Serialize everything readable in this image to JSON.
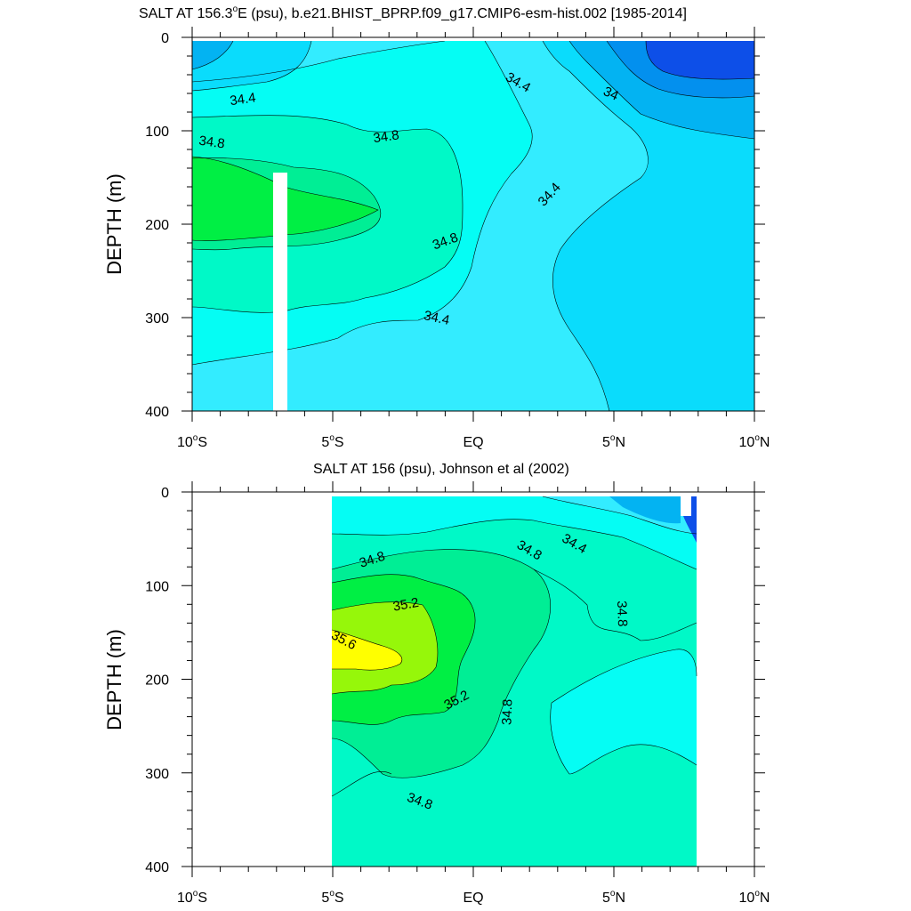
{
  "chart_data": [
    {
      "type": "heatmap",
      "title_main": "SALT AT 156.3",
      "title_deg": "o",
      "title_rest": "E (psu), b.e21.BHIST_BPRP.f09_g17.CMIP6-esm-hist.002 [1985-2014]",
      "ylabel": "DEPTH (m)",
      "xlim": [
        -10,
        10
      ],
      "ylim": [
        0,
        400
      ],
      "y_reversed": true,
      "y_ticks": [
        {
          "v": 0,
          "label": "0"
        },
        {
          "v": 100,
          "label": "100"
        },
        {
          "v": 200,
          "label": "200"
        },
        {
          "v": 300,
          "label": "300"
        },
        {
          "v": 400,
          "label": "400"
        }
      ],
      "x_ticks": [
        {
          "v": -10,
          "num": "10",
          "deg": "o",
          "hemi": "S"
        },
        {
          "v": -5,
          "num": "5",
          "deg": "o",
          "hemi": "S"
        },
        {
          "v": 0,
          "num": "",
          "deg": "",
          "hemi": "EQ"
        },
        {
          "v": 5,
          "num": "5",
          "deg": "o",
          "hemi": "N"
        },
        {
          "v": 10,
          "num": "10",
          "deg": "o",
          "hemi": "N"
        }
      ],
      "contour_labels": [
        {
          "text": "34.4",
          "lat": -8.2,
          "depth": 66,
          "angle": -8
        },
        {
          "text": "34.8",
          "lat": -9.3,
          "depth": 112,
          "angle": 8
        },
        {
          "text": "34.8",
          "lat": -3.1,
          "depth": 106,
          "angle": -8
        },
        {
          "text": "34.8",
          "lat": -1.0,
          "depth": 218,
          "angle": -20
        },
        {
          "text": "34.4",
          "lat": -1.3,
          "depth": 300,
          "angle": 12
        },
        {
          "text": "34.4",
          "lat": 1.6,
          "depth": 48,
          "angle": 30
        },
        {
          "text": "34",
          "lat": 4.9,
          "depth": 60,
          "angle": 25
        },
        {
          "text": "34.4",
          "lat": 2.7,
          "depth": 168,
          "angle": -48
        }
      ]
    },
    {
      "type": "heatmap",
      "title": "SALT AT 156 (psu), Johnson et al (2002)",
      "ylabel": "DEPTH (m)",
      "xlim": [
        -10,
        10
      ],
      "ylim": [
        0,
        400
      ],
      "y_reversed": true,
      "y_ticks": [
        {
          "v": 0,
          "label": "0"
        },
        {
          "v": 100,
          "label": "100"
        },
        {
          "v": 200,
          "label": "200"
        },
        {
          "v": 300,
          "label": "300"
        },
        {
          "v": 400,
          "label": "400"
        }
      ],
      "x_ticks": [
        {
          "v": -10,
          "num": "10",
          "deg": "o",
          "hemi": "S"
        },
        {
          "v": -5,
          "num": "5",
          "deg": "o",
          "hemi": "S"
        },
        {
          "v": 0,
          "num": "",
          "deg": "",
          "hemi": "EQ"
        },
        {
          "v": 5,
          "num": "5",
          "deg": "o",
          "hemi": "N"
        },
        {
          "v": 10,
          "num": "10",
          "deg": "o",
          "hemi": "N"
        }
      ],
      "contour_labels": [
        {
          "text": "34.8",
          "lat": -3.6,
          "depth": 72,
          "angle": -18
        },
        {
          "text": "34.8",
          "lat": 2.0,
          "depth": 62,
          "angle": 30
        },
        {
          "text": "34.4",
          "lat": 3.6,
          "depth": 55,
          "angle": 30
        },
        {
          "text": "35.2",
          "lat": -2.4,
          "depth": 120,
          "angle": -10
        },
        {
          "text": "35.6",
          "lat": -4.6,
          "depth": 158,
          "angle": 28
        },
        {
          "text": "35.2",
          "lat": -0.6,
          "depth": 222,
          "angle": -28
        },
        {
          "text": "34.8",
          "lat": 1.2,
          "depth": 235,
          "angle": -88
        },
        {
          "text": "34.8",
          "lat": 5.3,
          "depth": 130,
          "angle": 88
        },
        {
          "text": "34.8",
          "lat": -1.9,
          "depth": 330,
          "angle": 20
        }
      ]
    }
  ],
  "colors": {
    "c1": "#0d4fe8",
    "c2": "#0390ee",
    "c3": "#03b3f2",
    "c4": "#0adcfc",
    "c5": "#33ecff",
    "c6": "#05fdf4",
    "c7": "#00f9c7",
    "c8": "#00ee95",
    "c9": "#00ef44",
    "c10": "#96f70a",
    "c11": "#ffff00",
    "gap": "#ffffff"
  }
}
